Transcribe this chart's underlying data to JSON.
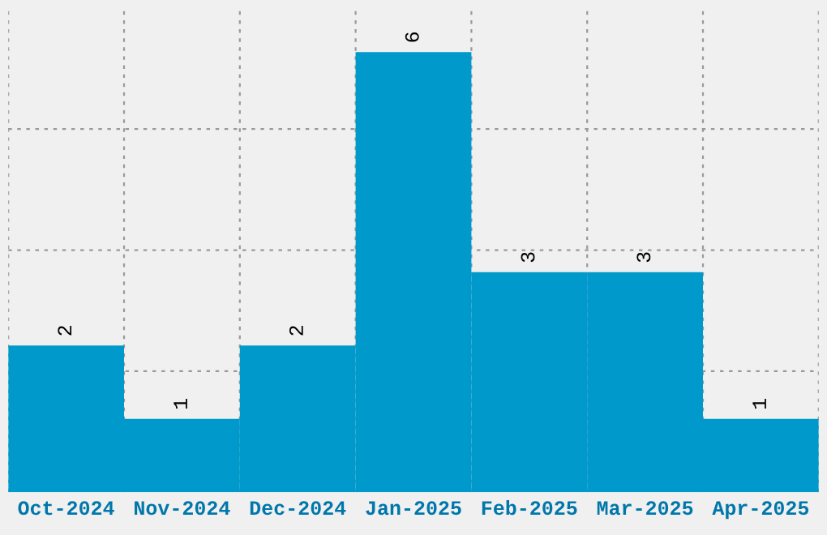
{
  "chart_data": {
    "type": "bar",
    "categories": [
      "Oct-2024",
      "Nov-2024",
      "Dec-2024",
      "Jan-2025",
      "Feb-2025",
      "Mar-2025",
      "Apr-2025"
    ],
    "values": [
      2,
      1,
      2,
      6,
      3,
      3,
      1
    ],
    "color": "#0099cc",
    "ylim": [
      0,
      6.6
    ],
    "yticks": [
      {
        "value": 1.65,
        "label": null
      },
      {
        "value": 3.3,
        "label": null
      },
      {
        "value": 4.95,
        "label": null
      }
    ],
    "tick_labels": "x",
    "data_labels": true,
    "grid": true,
    "legend": false
  }
}
